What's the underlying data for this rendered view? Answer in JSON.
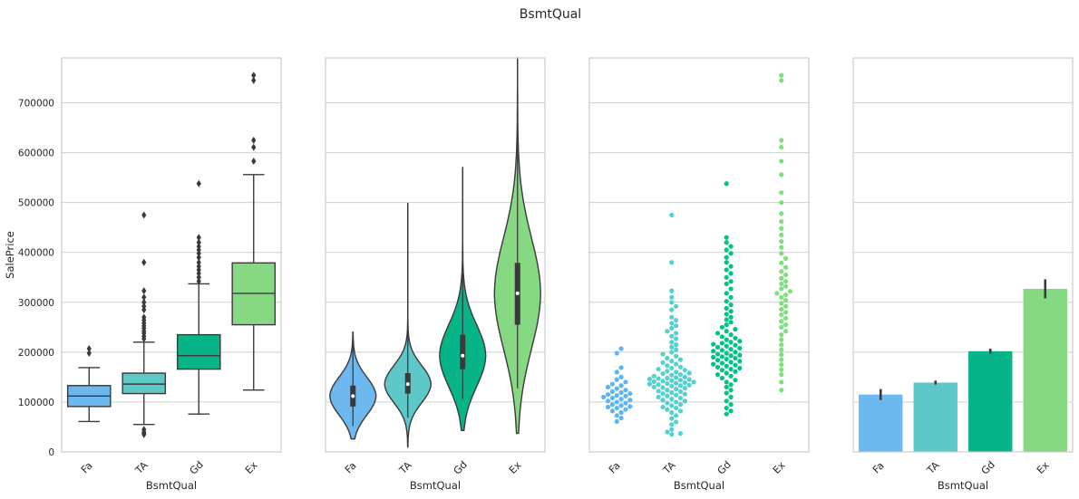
{
  "figure": {
    "title": "BsmtQual"
  },
  "colors": {
    "Fa": "#6cb8ef",
    "TA": "#5ec8c8",
    "Gd": "#06b488",
    "Ex": "#86d883",
    "swarm": {
      "Fa": "#5bb5f2",
      "TA": "#54d0cf",
      "Gd": "#02c386",
      "Ex": "#7de07a"
    },
    "grid": "#cfcfcf",
    "frame": "#cccccc",
    "line": "#3a3a3a"
  },
  "chart_data": [
    {
      "type": "box",
      "xlabel": "BsmtQual",
      "ylabel": "SalePrice",
      "ylim": [
        0,
        790000
      ],
      "yticks": [
        0,
        100000,
        200000,
        300000,
        400000,
        500000,
        600000,
        700000
      ],
      "ytick_labels": [
        "0",
        "100000",
        "200000",
        "300000",
        "400000",
        "500000",
        "600000",
        "700000"
      ],
      "categories": [
        "Fa",
        "TA",
        "Gd",
        "Ex"
      ],
      "boxes": [
        {
          "category": "Fa",
          "whisker_low": 61000,
          "q1": 91000,
          "median": 112000,
          "q3": 133000,
          "whisker_high": 169000,
          "outliers": [
            198000,
            207000
          ]
        },
        {
          "category": "TA",
          "whisker_low": 55000,
          "q1": 117000,
          "median": 136000,
          "q3": 158000,
          "whisker_high": 220000,
          "outliers": [
            35000,
            37000,
            40000,
            45000,
            227000,
            232000,
            238000,
            242000,
            248000,
            253000,
            258000,
            264000,
            270000,
            285000,
            292000,
            300000,
            310000,
            323000,
            380000,
            475000
          ]
        },
        {
          "category": "Gd",
          "whisker_low": 76000,
          "q1": 166000,
          "median": 193000,
          "q3": 235000,
          "whisker_high": 337000,
          "outliers": [
            342000,
            350000,
            358000,
            365000,
            372000,
            380000,
            390000,
            398000,
            405000,
            412000,
            420000,
            430000,
            538000
          ]
        },
        {
          "category": "Ex",
          "whisker_low": 124000,
          "q1": 255000,
          "median": 318000,
          "q3": 379000,
          "whisker_high": 556000,
          "outliers": [
            583000,
            611000,
            625000,
            745000,
            755000
          ]
        }
      ]
    },
    {
      "type": "violin",
      "xlabel": "BsmtQual",
      "ylim": [
        0,
        790000
      ],
      "categories": [
        "Fa",
        "TA",
        "Gd",
        "Ex"
      ],
      "violins": [
        {
          "category": "Fa",
          "min": 26000,
          "max": 240000,
          "q1": 91000,
          "median": 112000,
          "q3": 133000
        },
        {
          "category": "TA",
          "min": 10000,
          "max": 498000,
          "q1": 117000,
          "median": 136000,
          "q3": 158000
        },
        {
          "category": "Gd",
          "min": 43000,
          "max": 570000,
          "q1": 166000,
          "median": 193000,
          "q3": 235000
        },
        {
          "category": "Ex",
          "min": 37000,
          "max": 790000,
          "q1": 255000,
          "median": 318000,
          "q3": 379000
        }
      ]
    },
    {
      "type": "scatter",
      "subtype": "swarm",
      "xlabel": "BsmtQual",
      "ylim": [
        0,
        790000
      ],
      "categories": [
        "Fa",
        "TA",
        "Gd",
        "Ex"
      ],
      "series": [
        {
          "category": "Fa",
          "values": [
            61000,
            68000,
            73000,
            79000,
            82000,
            85000,
            88000,
            90000,
            91000,
            93000,
            95000,
            98000,
            100000,
            102000,
            104000,
            106000,
            108000,
            110000,
            112000,
            113000,
            115000,
            117000,
            119000,
            121000,
            124000,
            127000,
            130000,
            133000,
            136000,
            140000,
            145000,
            150000,
            160000,
            169000,
            198000,
            207000
          ]
        },
        {
          "category": "TA",
          "values": [
            35000,
            37000,
            40000,
            45000,
            55000,
            60000,
            67000,
            73000,
            79000,
            82000,
            85000,
            88000,
            90000,
            93000,
            95000,
            98000,
            100000,
            102000,
            104000,
            106000,
            108000,
            110000,
            112000,
            114000,
            116000,
            117000,
            119000,
            121000,
            122000,
            124000,
            126000,
            128000,
            129000,
            130000,
            132000,
            133000,
            134000,
            135000,
            136000,
            137000,
            138000,
            139000,
            140000,
            141000,
            142000,
            143000,
            144000,
            145000,
            146000,
            147000,
            148000,
            149000,
            150000,
            152000,
            154000,
            155000,
            157000,
            158000,
            160000,
            162000,
            164000,
            166000,
            168000,
            170000,
            173000,
            176000,
            179000,
            182000,
            185000,
            188000,
            192000,
            196000,
            200000,
            205000,
            210000,
            215000,
            220000,
            227000,
            232000,
            238000,
            242000,
            248000,
            253000,
            258000,
            264000,
            270000,
            285000,
            292000,
            300000,
            310000,
            323000,
            380000,
            475000
          ]
        },
        {
          "category": "Gd",
          "values": [
            76000,
            82000,
            88000,
            95000,
            102000,
            110000,
            118000,
            124000,
            130000,
            135000,
            140000,
            144000,
            148000,
            152000,
            155000,
            158000,
            161000,
            164000,
            166000,
            168000,
            170000,
            172000,
            174000,
            176000,
            178000,
            180000,
            182000,
            184000,
            186000,
            188000,
            190000,
            191000,
            193000,
            194000,
            196000,
            198000,
            200000,
            202000,
            204000,
            206000,
            208000,
            210000,
            212000,
            214000,
            216000,
            218000,
            220000,
            222000,
            225000,
            228000,
            231000,
            235000,
            238000,
            242000,
            246000,
            250000,
            255000,
            260000,
            265000,
            270000,
            276000,
            282000,
            288000,
            295000,
            302000,
            310000,
            318000,
            327000,
            337000,
            342000,
            350000,
            358000,
            365000,
            372000,
            380000,
            390000,
            398000,
            405000,
            412000,
            420000,
            430000,
            538000
          ]
        },
        {
          "category": "Ex",
          "values": [
            124000,
            140000,
            155000,
            165000,
            175000,
            185000,
            195000,
            205000,
            215000,
            225000,
            235000,
            242000,
            250000,
            255000,
            262000,
            268000,
            275000,
            280000,
            286000,
            292000,
            298000,
            304000,
            310000,
            315000,
            318000,
            322000,
            327000,
            332000,
            337000,
            342000,
            348000,
            355000,
            362000,
            370000,
            379000,
            388000,
            398000,
            410000,
            422000,
            435000,
            448000,
            462000,
            478000,
            500000,
            520000,
            556000,
            583000,
            611000,
            625000,
            745000,
            755000
          ]
        }
      ]
    },
    {
      "type": "bar",
      "xlabel": "BsmtQual",
      "ylim": [
        0,
        790000
      ],
      "categories": [
        "Fa",
        "TA",
        "Gd",
        "Ex"
      ],
      "values": [
        115000,
        139000,
        202000,
        327000
      ],
      "error_low": [
        104000,
        135000,
        197000,
        308000
      ],
      "error_high": [
        126000,
        143000,
        207000,
        346000
      ]
    }
  ]
}
